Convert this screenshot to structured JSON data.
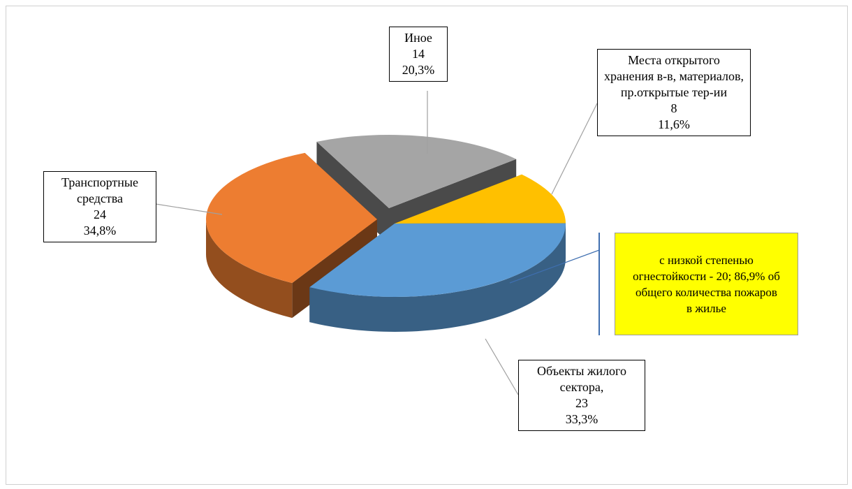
{
  "chart_data": {
    "type": "pie",
    "categories": [
      "Иное",
      "Места открытого хранения в-в, материалов, пр.открытые тер-ии",
      "Объекты жилого сектора,",
      "Транспортные средства"
    ],
    "values": [
      14,
      8,
      23,
      24
    ],
    "percents": [
      {
        "value": 20.3,
        "label": "20,3%"
      },
      {
        "value": 11.6,
        "label": "11,6%"
      },
      {
        "value": 33.3,
        "label": "33,3%"
      },
      {
        "value": 34.8,
        "label": "34,8%"
      }
    ],
    "colors": [
      "#a5a5a5",
      "#ffc000",
      "#5b9bd5",
      "#ed7d31"
    ],
    "annotation": "с низкой степенью огнестойкости - 20; 86,9% об общего количества пожаров в жилье"
  }
}
